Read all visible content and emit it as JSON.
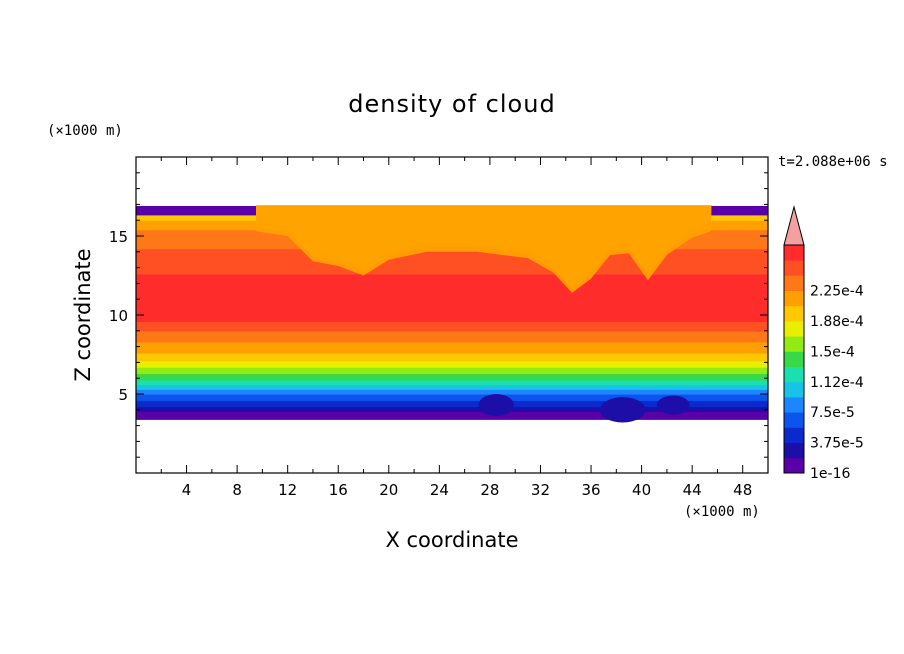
{
  "chart_data": {
    "type": "heatmap",
    "title": "density of cloud",
    "xlabel": "X coordinate",
    "ylabel": "Z coordinate",
    "x_unit": "(×1000 m)",
    "y_unit": "(×1000 m)",
    "time_label": "t=2.088e+06 s",
    "xlim": [
      0,
      50
    ],
    "ylim": [
      0,
      20
    ],
    "x_ticks": [
      4,
      8,
      12,
      16,
      20,
      24,
      28,
      32,
      36,
      40,
      44,
      48
    ],
    "y_ticks": [
      5,
      10,
      15
    ],
    "colorbar": {
      "colors": [
        "#5a00a8",
        "#1c0ea6",
        "#0a2acc",
        "#0b55ee",
        "#1d86ff",
        "#17c4e6",
        "#1ae0b0",
        "#38d848",
        "#94ea14",
        "#e6f000",
        "#ffc800",
        "#ffa000",
        "#ff7818",
        "#ff5024",
        "#ff2c2c"
      ],
      "extend_color": "#f4a0a0",
      "labels": [
        "1e-16",
        "3.75e-5",
        "7.5e-5",
        "1.12e-4",
        "1.5e-4",
        "1.88e-4",
        "2.25e-4"
      ]
    },
    "profile": [
      {
        "z": 3.4,
        "color": "#5a00a8"
      },
      {
        "z": 3.9,
        "color": "#1c0ea6"
      },
      {
        "z": 4.2,
        "color": "#0a2acc"
      },
      {
        "z": 4.6,
        "color": "#0b55ee"
      },
      {
        "z": 5.0,
        "color": "#1d86ff"
      },
      {
        "z": 5.3,
        "color": "#17c4e6"
      },
      {
        "z": 5.6,
        "color": "#1ae0b0"
      },
      {
        "z": 5.9,
        "color": "#38d848"
      },
      {
        "z": 6.3,
        "color": "#94ea14"
      },
      {
        "z": 6.7,
        "color": "#e6f000"
      },
      {
        "z": 7.1,
        "color": "#ffc800"
      },
      {
        "z": 7.6,
        "color": "#ffa000"
      },
      {
        "z": 8.3,
        "color": "#ff7818"
      },
      {
        "z": 9.0,
        "color": "#ff5024"
      },
      {
        "z": 9.6,
        "color": "#ff2c2c"
      },
      {
        "z": 12.6,
        "color": "#ff5024"
      },
      {
        "z": 14.2,
        "color": "#ff7818"
      },
      {
        "z": 15.4,
        "color": "#ffa000"
      },
      {
        "z": 16.0,
        "color": "#ffc800"
      },
      {
        "z": 16.3,
        "color": "#e6f000"
      },
      {
        "z": 16.5,
        "color": "#38d848"
      },
      {
        "z": 16.7,
        "color": "#1d86ff"
      },
      {
        "z": 16.9,
        "color": "#5a00a8"
      }
    ],
    "top_band": {
      "z": 16.3,
      "color": "#5a00a8"
    },
    "intrusions": [
      [
        [
          9.5,
          16.9
        ],
        [
          12,
          16.6
        ],
        [
          14,
          15.0
        ],
        [
          16,
          14.7
        ],
        [
          18,
          14.1
        ],
        [
          20,
          15.1
        ],
        [
          23,
          15.6
        ],
        [
          27,
          15.6
        ],
        [
          31,
          15.2
        ],
        [
          33,
          14.3
        ],
        [
          34.5,
          13.0
        ],
        [
          36,
          13.9
        ],
        [
          37.5,
          15.4
        ],
        [
          39,
          15.5
        ],
        [
          40.5,
          13.8
        ],
        [
          42,
          15.4
        ],
        [
          44,
          16.5
        ],
        [
          45.5,
          16.9
        ]
      ]
    ],
    "bottom_bumps": [
      {
        "x": 28.5,
        "z": 4.3,
        "rx": 1.4,
        "rz": 0.7
      },
      {
        "x": 38.5,
        "z": 4.0,
        "rx": 1.8,
        "rz": 0.8
      },
      {
        "x": 42.5,
        "z": 4.3,
        "rx": 1.3,
        "rz": 0.6
      }
    ]
  }
}
